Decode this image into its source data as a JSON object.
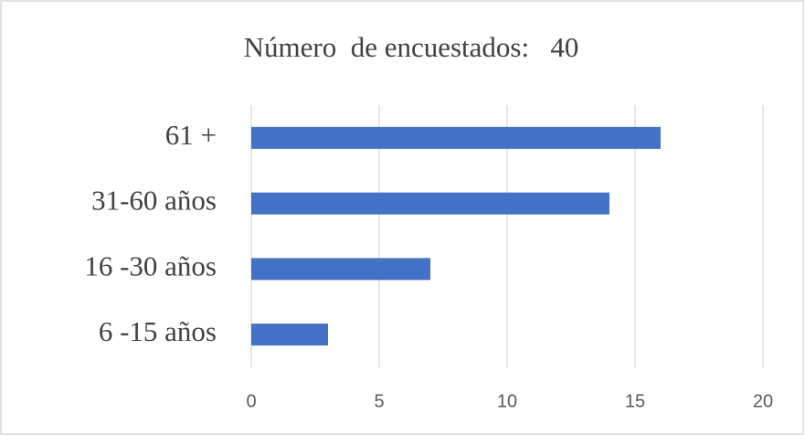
{
  "chart_data": {
    "type": "hbar",
    "title": "Número  de encuestados:   40",
    "categories": [
      "61 +",
      "31-60 años",
      "16 -30 años",
      "6 -15 años"
    ],
    "values": [
      16,
      14,
      7,
      3
    ],
    "color": "#4472c4",
    "xlim": [
      0,
      20
    ],
    "xticks": [
      0,
      5,
      10,
      15,
      20
    ],
    "grid": true
  }
}
